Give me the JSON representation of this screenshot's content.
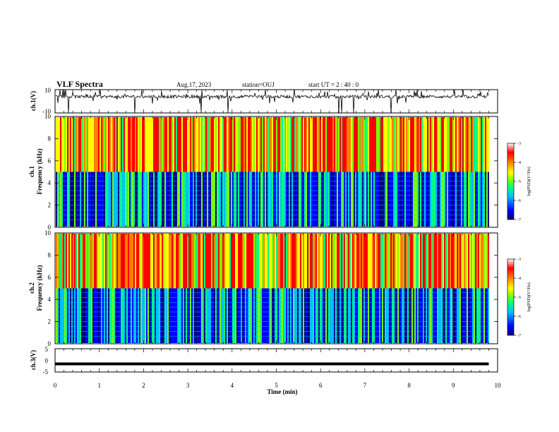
{
  "header": {
    "title": "VLF Spectra",
    "date": "Aug.17, 2023",
    "station": "station=OUJ",
    "start_ut": "start  UT =   2 : 40 : 0"
  },
  "chart_data": {
    "type": "heatmap",
    "x_axis": {
      "label": "Time  (min)",
      "range": [
        0,
        10
      ],
      "ticks": [
        "0",
        "1",
        "2",
        "3",
        "4",
        "5",
        "6",
        "7",
        "8",
        "9",
        "10"
      ]
    },
    "panels": [
      {
        "kind": "waveform",
        "ylabel": "ch.1(V)",
        "ylim": [
          -10,
          10
        ],
        "yticks": [
          "10",
          "-10"
        ],
        "baseline": 4,
        "spike_values": [
          -10,
          10
        ],
        "trace_color": "#000000"
      },
      {
        "kind": "spectrogram",
        "ylabel": [
          "ch.1",
          "Frequency  (kHz)"
        ],
        "ylim": [
          0,
          10
        ],
        "yticks": [
          "0",
          "2",
          "4",
          "6",
          "8",
          "10"
        ],
        "low_band_upper_khz": 5,
        "colorbar": {
          "label": "log(PSD)(V²/Hz)",
          "range": [
            -7,
            -3
          ],
          "ticks": [
            "-3",
            "-4",
            "-5",
            "-6",
            "-7"
          ]
        }
      },
      {
        "kind": "spectrogram",
        "ylabel": [
          "ch.2",
          "Frequency  (kHz)"
        ],
        "ylim": [
          0,
          10
        ],
        "yticks": [
          "0",
          "2",
          "4",
          "6",
          "8",
          "10"
        ],
        "low_band_upper_khz": 5,
        "colorbar": {
          "label": "log(PSD)(V²/Hz)",
          "range": [
            -7,
            -3
          ],
          "ticks": [
            "-3",
            "-4",
            "-5",
            "-6",
            "-7"
          ]
        }
      },
      {
        "kind": "waveform",
        "ylabel": "ch.3(V)",
        "ylim": [
          -5,
          5
        ],
        "yticks": [
          "5",
          "0",
          "-5"
        ],
        "baseline": -1.5,
        "trace_color": "#000000"
      }
    ],
    "data_end_min": 9.8,
    "colormap": [
      "#00007f",
      "#0000ff",
      "#00bfff",
      "#00ff7f",
      "#7fff00",
      "#ffff00",
      "#ff7f00",
      "#ff0000",
      "#ffffff"
    ]
  }
}
